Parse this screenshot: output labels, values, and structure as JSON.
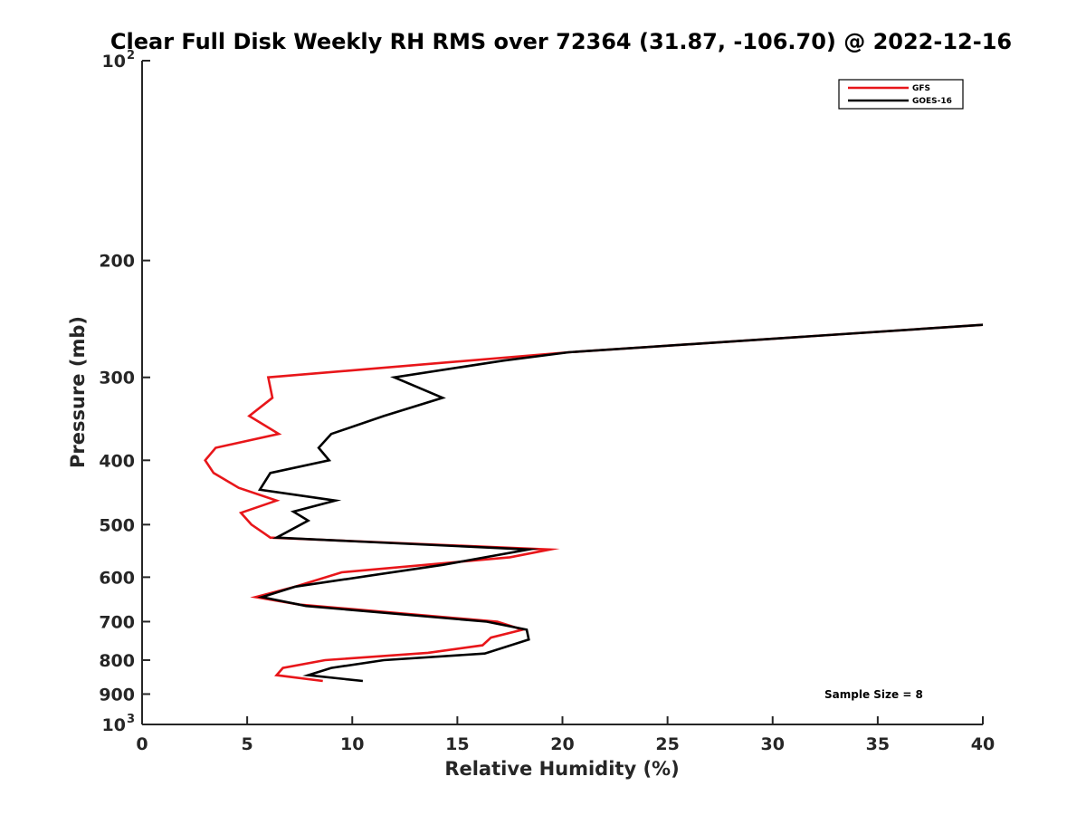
{
  "chart_data": {
    "type": "line",
    "title": "Clear Full Disk Weekly RH RMS over 72364 (31.87, -106.70) @ 2022-12-16",
    "xlabel": "Relative Humidity (%)",
    "ylabel": "Pressure (mb)",
    "xlim": [
      0,
      40
    ],
    "ylim": [
      100,
      1000
    ],
    "yscale": "log",
    "yreversed": false,
    "grid": false,
    "legend_position": "top-right",
    "x_ticks": [
      "0",
      "5",
      "10",
      "15",
      "20",
      "25",
      "30",
      "35",
      "40"
    ],
    "y_ticks": [
      {
        "value": 100,
        "base": "10",
        "exp": "2"
      },
      {
        "value": 200,
        "label": "200"
      },
      {
        "value": 300,
        "label": "300"
      },
      {
        "value": 400,
        "label": "400"
      },
      {
        "value": 500,
        "label": "500"
      },
      {
        "value": 600,
        "label": "600"
      },
      {
        "value": 700,
        "label": "700"
      },
      {
        "value": 800,
        "label": "800"
      },
      {
        "value": 900,
        "label": "900"
      },
      {
        "value": 1000,
        "base": "10",
        "exp": "3"
      }
    ],
    "series": [
      {
        "name": "GFS",
        "color": "#e8161a",
        "points": [
          [
            40.0,
            250
          ],
          [
            20.3,
            275
          ],
          [
            6.0,
            300
          ],
          [
            6.2,
            322
          ],
          [
            5.1,
            343
          ],
          [
            6.5,
            365
          ],
          [
            3.5,
            383
          ],
          [
            3.0,
            400
          ],
          [
            3.4,
            418
          ],
          [
            4.6,
            440
          ],
          [
            6.4,
            460
          ],
          [
            4.7,
            480
          ],
          [
            5.2,
            500
          ],
          [
            5.8,
            515
          ],
          [
            6.1,
            523
          ],
          [
            19.4,
            545
          ],
          [
            17.5,
            560
          ],
          [
            9.5,
            590
          ],
          [
            7.3,
            620
          ],
          [
            5.4,
            643
          ],
          [
            7.5,
            660
          ],
          [
            16.9,
            700
          ],
          [
            18.1,
            720
          ],
          [
            16.6,
            740
          ],
          [
            16.2,
            760
          ],
          [
            13.6,
            780
          ],
          [
            8.7,
            800
          ],
          [
            6.7,
            822
          ],
          [
            6.4,
            843
          ],
          [
            8.6,
            860
          ]
        ]
      },
      {
        "name": "GOES-16",
        "color": "#000000",
        "points": [
          [
            40.0,
            250
          ],
          [
            20.3,
            275
          ],
          [
            17.2,
            283
          ],
          [
            12.0,
            300
          ],
          [
            14.3,
            322
          ],
          [
            11.5,
            343
          ],
          [
            9.0,
            365
          ],
          [
            8.4,
            383
          ],
          [
            8.9,
            400
          ],
          [
            6.1,
            418
          ],
          [
            5.6,
            443
          ],
          [
            9.2,
            460
          ],
          [
            7.2,
            478
          ],
          [
            7.9,
            493
          ],
          [
            6.4,
            523
          ],
          [
            18.4,
            545
          ],
          [
            14.3,
            575
          ],
          [
            7.3,
            620
          ],
          [
            5.7,
            643
          ],
          [
            7.8,
            663
          ],
          [
            16.4,
            700
          ],
          [
            18.3,
            720
          ],
          [
            18.4,
            745
          ],
          [
            16.3,
            782
          ],
          [
            11.5,
            800
          ],
          [
            9.0,
            822
          ],
          [
            7.9,
            843
          ],
          [
            10.5,
            860
          ]
        ]
      }
    ],
    "annotations": [
      {
        "text": "Sample Size = 8"
      }
    ]
  }
}
